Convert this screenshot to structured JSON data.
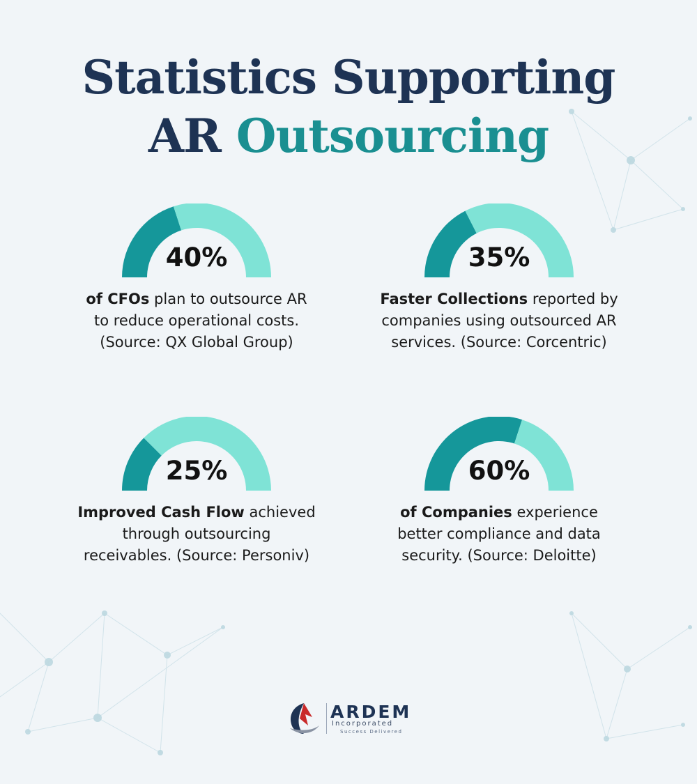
{
  "title": {
    "line1": "Statistics Supporting",
    "line2_plain": "AR",
    "line2_accent": "Outsourcing"
  },
  "colors": {
    "dark_teal": "#15979a",
    "light_teal": "#7fe3d6",
    "navy": "#1e3354",
    "accent_teal": "#1a8f91"
  },
  "stats": [
    {
      "value": "40%",
      "fraction": 0.4,
      "bold": "of CFOs",
      "line1_rest": " plan to outsource AR",
      "line2": "to reduce operational costs.",
      "line3": "(Source: QX Global Group)"
    },
    {
      "value": "35%",
      "fraction": 0.35,
      "bold": "Faster Collections",
      "line1_rest": " reported by",
      "line2": "companies using outsourced AR",
      "line3": "services. (Source: Corcentric)"
    },
    {
      "value": "25%",
      "fraction": 0.25,
      "bold": "Improved Cash Flow",
      "line1_rest": " achieved",
      "line2": "through outsourcing",
      "line3": "receivables. (Source: Personiv)"
    },
    {
      "value": "60%",
      "fraction": 0.6,
      "bold": "of Companies",
      "line1_rest": " experience",
      "line2": "better compliance and data",
      "line3": "security. (Source: Deloitte)"
    }
  ],
  "logo": {
    "name": "ARDEM",
    "sub": "Incorporated",
    "tagline": "Success Delivered",
    "icon": "ardem-logo-icon"
  }
}
